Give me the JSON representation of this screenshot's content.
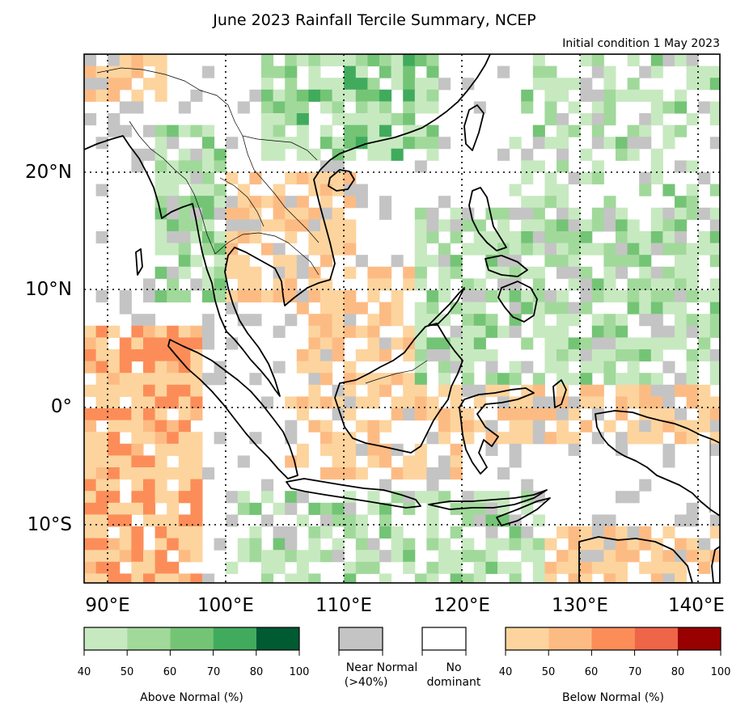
{
  "title": "June 2023 Rainfall Tercile Summary, NCEP",
  "subtitle": "Initial condition 1 May 2023",
  "axes": {
    "lat_labels": [
      {
        "lat": 20,
        "label": "20°N"
      },
      {
        "lat": 10,
        "label": "10°N"
      },
      {
        "lat": 0,
        "label": "0°"
      },
      {
        "lat": -10,
        "label": "10°S"
      }
    ],
    "lon_labels": [
      {
        "lon": 90,
        "label": "90°E"
      },
      {
        "lon": 100,
        "label": "100°E"
      },
      {
        "lon": 110,
        "label": "110°E"
      },
      {
        "lon": 120,
        "label": "120°E"
      },
      {
        "lon": 130,
        "label": "130°E"
      },
      {
        "lon": 140,
        "label": "140°E"
      }
    ],
    "lon_range": [
      88,
      142
    ],
    "lat_range": [
      -15,
      30
    ],
    "gridlines": "dotted"
  },
  "legend": {
    "above": {
      "title": "Above Normal (%)",
      "ticks": [
        "40",
        "50",
        "60",
        "70",
        "80",
        "100"
      ],
      "colors": [
        "#c7e9c0",
        "#a1d99b",
        "#74c476",
        "#41ab5d",
        "#005a32"
      ]
    },
    "near": {
      "label_line1": "Near Normal",
      "label_line2": "(>40%)",
      "color": "#c4c4c4"
    },
    "none": {
      "label_line1": "No",
      "label_line2": "dominant",
      "color": "#ffffff"
    },
    "below": {
      "title": "Below Normal (%)",
      "ticks": [
        "40",
        "50",
        "60",
        "70",
        "80",
        "100"
      ],
      "colors": [
        "#fdd49e",
        "#fdbb84",
        "#fc8d59",
        "#ef6548",
        "#990000"
      ]
    }
  }
}
